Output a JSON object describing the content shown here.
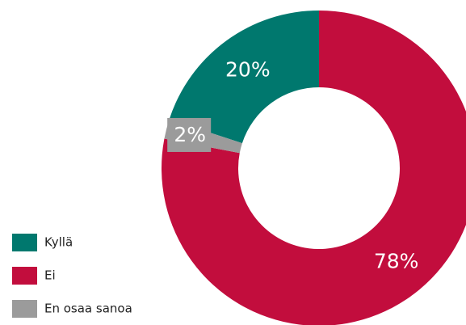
{
  "chart_data": {
    "type": "donut",
    "categories": [
      "Kyllä",
      "Ei",
      "En osaa sanoa"
    ],
    "values": [
      20,
      78,
      2
    ],
    "value_labels": [
      "20%",
      "78%",
      "2%"
    ],
    "colors": [
      "#00786e",
      "#c20d3d",
      "#9b9b9b"
    ]
  }
}
